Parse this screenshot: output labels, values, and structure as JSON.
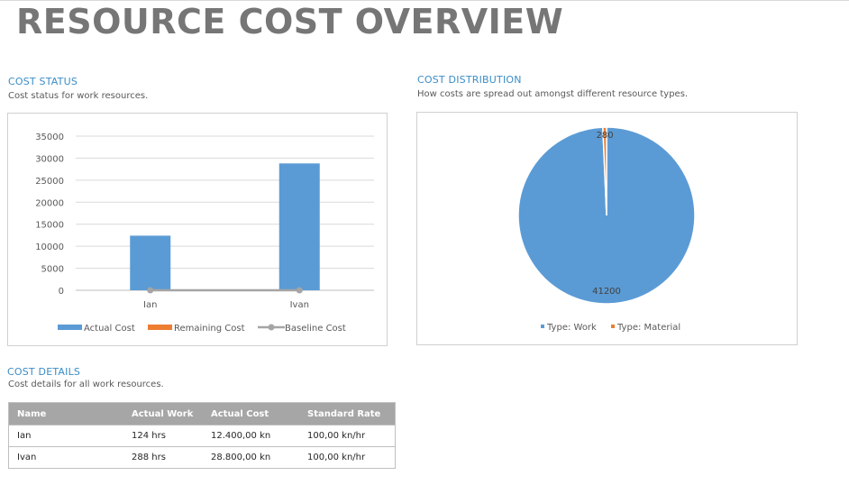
{
  "page": {
    "title": "RESOURCE COST OVERVIEW"
  },
  "cost_status": {
    "title": "COST STATUS",
    "subtitle": "Cost status for work resources."
  },
  "cost_distribution": {
    "title": "COST DISTRIBUTION",
    "subtitle": "How costs are spread out amongst different resource types."
  },
  "cost_details": {
    "title": "COST DETAILS",
    "subtitle": "Cost details for all work resources.",
    "columns": [
      "Name",
      "Actual Work",
      "Actual Cost",
      "Standard Rate"
    ],
    "rows": [
      [
        "Ian",
        "124 hrs",
        "12.400,00 kn",
        "100,00 kn/hr"
      ],
      [
        "Ivan",
        "288 hrs",
        "28.800,00 kn",
        "100,00 kn/hr"
      ]
    ]
  },
  "colors": {
    "actual": "#5b9bd5",
    "remaining": "#ed7d31",
    "baseline": "#a5a5a5",
    "work": "#5b9bd5",
    "material": "#ed7d31",
    "accent": "#3b8dc6"
  },
  "chart_data": [
    {
      "type": "bar",
      "categories": [
        "Ian",
        "Ivan"
      ],
      "series": [
        {
          "name": "Actual Cost",
          "kind": "bar",
          "color": "#5b9bd5",
          "values": [
            12400,
            28800
          ]
        },
        {
          "name": "Remaining Cost",
          "kind": "bar",
          "color": "#ed7d31",
          "values": [
            0,
            0
          ]
        },
        {
          "name": "Baseline Cost",
          "kind": "line",
          "color": "#a5a5a5",
          "values": [
            0,
            0
          ]
        }
      ],
      "yticks": [
        "35000",
        "30000",
        "25000",
        "20000",
        "15000",
        "10000",
        "5000",
        "0"
      ],
      "ylim": [
        0,
        35000
      ],
      "grid": true,
      "legend": "bottom"
    },
    {
      "type": "pie",
      "labels": [
        "Type: Work",
        "Type: Material"
      ],
      "values": [
        41200,
        280
      ],
      "data_labels": [
        "41200",
        "280"
      ],
      "colors": [
        "#5b9bd5",
        "#ed7d31"
      ],
      "legend": "bottom"
    }
  ]
}
